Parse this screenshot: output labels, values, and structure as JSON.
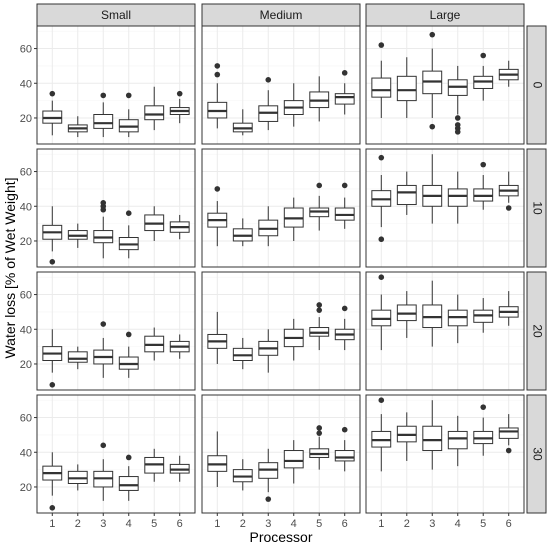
{
  "chart_data": {
    "type": "boxplot",
    "xlabel": "Processor",
    "ylabel": "Water loss [% of Wet Weight]",
    "x_ticks": [
      "1",
      "2",
      "3",
      "4",
      "5",
      "6"
    ],
    "y_ticks": [
      20,
      40,
      60
    ],
    "ylim": [
      5,
      73
    ],
    "grid": true,
    "columns": [
      "Small",
      "Medium",
      "Large"
    ],
    "rows": [
      "0",
      "10",
      "20",
      "30"
    ],
    "panels": [
      {
        "column": "Small",
        "row": "0",
        "boxes": [
          {
            "x": "1",
            "min": 10,
            "q1": 17,
            "median": 20,
            "q3": 24,
            "max": 30,
            "outliers": [
              34
            ]
          },
          {
            "x": "2",
            "min": 9,
            "q1": 12,
            "median": 14,
            "q3": 16,
            "max": 21,
            "outliers": []
          },
          {
            "x": "3",
            "min": 9,
            "q1": 14,
            "median": 17,
            "q3": 22,
            "max": 29,
            "outliers": [
              33
            ]
          },
          {
            "x": "4",
            "min": 9,
            "q1": 12,
            "median": 15,
            "q3": 19,
            "max": 25,
            "outliers": [
              33
            ]
          },
          {
            "x": "5",
            "min": 13,
            "q1": 19,
            "median": 22,
            "q3": 27,
            "max": 38,
            "outliers": []
          },
          {
            "x": "6",
            "min": 17,
            "q1": 22,
            "median": 24,
            "q3": 26,
            "max": 31,
            "outliers": [
              34
            ]
          }
        ]
      },
      {
        "column": "Medium",
        "row": "0",
        "boxes": [
          {
            "x": "1",
            "min": 14,
            "q1": 20,
            "median": 24,
            "q3": 29,
            "max": 40,
            "outliers": [
              45,
              50
            ]
          },
          {
            "x": "2",
            "min": 10,
            "q1": 12,
            "median": 14,
            "q3": 17,
            "max": 25,
            "outliers": []
          },
          {
            "x": "3",
            "min": 13,
            "q1": 18,
            "median": 23,
            "q3": 27,
            "max": 36,
            "outliers": [
              42
            ]
          },
          {
            "x": "4",
            "min": 15,
            "q1": 22,
            "median": 26,
            "q3": 30,
            "max": 40,
            "outliers": []
          },
          {
            "x": "5",
            "min": 18,
            "q1": 26,
            "median": 30,
            "q3": 35,
            "max": 44,
            "outliers": []
          },
          {
            "x": "6",
            "min": 22,
            "q1": 28,
            "median": 32,
            "q3": 34,
            "max": 40,
            "outliers": [
              46
            ]
          }
        ]
      },
      {
        "column": "Large",
        "row": "0",
        "boxes": [
          {
            "x": "1",
            "min": 20,
            "q1": 32,
            "median": 36,
            "q3": 43,
            "max": 53,
            "outliers": [
              62
            ]
          },
          {
            "x": "2",
            "min": 20,
            "q1": 30,
            "median": 36,
            "q3": 44,
            "max": 55,
            "outliers": []
          },
          {
            "x": "3",
            "min": 20,
            "q1": 34,
            "median": 41,
            "q3": 47,
            "max": 60,
            "outliers": [
              15,
              68
            ]
          },
          {
            "x": "4",
            "min": 22,
            "q1": 33,
            "median": 38,
            "q3": 42,
            "max": 50,
            "outliers": [
              12,
              14,
              16,
              20
            ]
          },
          {
            "x": "5",
            "min": 30,
            "q1": 37,
            "median": 41,
            "q3": 44,
            "max": 50,
            "outliers": [
              56
            ]
          },
          {
            "x": "6",
            "min": 38,
            "q1": 42,
            "median": 45,
            "q3": 48,
            "max": 53,
            "outliers": []
          }
        ]
      },
      {
        "column": "Small",
        "row": "10",
        "boxes": [
          {
            "x": "1",
            "min": 14,
            "q1": 21,
            "median": 25,
            "q3": 29,
            "max": 40,
            "outliers": [
              8
            ]
          },
          {
            "x": "2",
            "min": 16,
            "q1": 21,
            "median": 23,
            "q3": 26,
            "max": 30,
            "outliers": []
          },
          {
            "x": "3",
            "min": 10,
            "q1": 19,
            "median": 22,
            "q3": 26,
            "max": 34,
            "outliers": [
              38,
              40,
              42
            ]
          },
          {
            "x": "4",
            "min": 10,
            "q1": 15,
            "median": 18,
            "q3": 22,
            "max": 29,
            "outliers": [
              36
            ]
          },
          {
            "x": "5",
            "min": 20,
            "q1": 26,
            "median": 30,
            "q3": 35,
            "max": 40,
            "outliers": []
          },
          {
            "x": "6",
            "min": 21,
            "q1": 25,
            "median": 28,
            "q3": 31,
            "max": 35,
            "outliers": []
          }
        ]
      },
      {
        "column": "Medium",
        "row": "10",
        "boxes": [
          {
            "x": "1",
            "min": 17,
            "q1": 28,
            "median": 32,
            "q3": 36,
            "max": 43,
            "outliers": [
              50
            ]
          },
          {
            "x": "2",
            "min": 17,
            "q1": 20,
            "median": 23,
            "q3": 27,
            "max": 33,
            "outliers": []
          },
          {
            "x": "3",
            "min": 17,
            "q1": 23,
            "median": 27,
            "q3": 32,
            "max": 40,
            "outliers": []
          },
          {
            "x": "4",
            "min": 20,
            "q1": 28,
            "median": 33,
            "q3": 39,
            "max": 45,
            "outliers": []
          },
          {
            "x": "5",
            "min": 26,
            "q1": 34,
            "median": 37,
            "q3": 39,
            "max": 46,
            "outliers": [
              52
            ]
          },
          {
            "x": "6",
            "min": 27,
            "q1": 32,
            "median": 35,
            "q3": 39,
            "max": 45,
            "outliers": [
              52
            ]
          }
        ]
      },
      {
        "column": "Large",
        "row": "10",
        "boxes": [
          {
            "x": "1",
            "min": 28,
            "q1": 40,
            "median": 44,
            "q3": 49,
            "max": 58,
            "outliers": [
              21,
              68
            ]
          },
          {
            "x": "2",
            "min": 35,
            "q1": 41,
            "median": 48,
            "q3": 52,
            "max": 60,
            "outliers": []
          },
          {
            "x": "3",
            "min": 30,
            "q1": 40,
            "median": 46,
            "q3": 52,
            "max": 70,
            "outliers": []
          },
          {
            "x": "4",
            "min": 30,
            "q1": 40,
            "median": 46,
            "q3": 50,
            "max": 60,
            "outliers": []
          },
          {
            "x": "5",
            "min": 38,
            "q1": 43,
            "median": 46,
            "q3": 50,
            "max": 58,
            "outliers": [
              64
            ]
          },
          {
            "x": "6",
            "min": 42,
            "q1": 46,
            "median": 49,
            "q3": 52,
            "max": 60,
            "outliers": [
              39
            ]
          }
        ]
      },
      {
        "column": "Small",
        "row": "20",
        "boxes": [
          {
            "x": "1",
            "min": 15,
            "q1": 22,
            "median": 26,
            "q3": 30,
            "max": 40,
            "outliers": [
              8
            ]
          },
          {
            "x": "2",
            "min": 17,
            "q1": 21,
            "median": 23,
            "q3": 27,
            "max": 30,
            "outliers": []
          },
          {
            "x": "3",
            "min": 12,
            "q1": 20,
            "median": 24,
            "q3": 28,
            "max": 35,
            "outliers": [
              43
            ]
          },
          {
            "x": "4",
            "min": 12,
            "q1": 17,
            "median": 20,
            "q3": 24,
            "max": 30,
            "outliers": [
              37
            ]
          },
          {
            "x": "5",
            "min": 22,
            "q1": 27,
            "median": 31,
            "q3": 36,
            "max": 41,
            "outliers": []
          },
          {
            "x": "6",
            "min": 23,
            "q1": 27,
            "median": 30,
            "q3": 33,
            "max": 37,
            "outliers": []
          }
        ]
      },
      {
        "column": "Medium",
        "row": "20",
        "boxes": [
          {
            "x": "1",
            "min": 20,
            "q1": 29,
            "median": 33,
            "q3": 37,
            "max": 50,
            "outliers": []
          },
          {
            "x": "2",
            "min": 17,
            "q1": 22,
            "median": 25,
            "q3": 29,
            "max": 35,
            "outliers": []
          },
          {
            "x": "3",
            "min": 15,
            "q1": 25,
            "median": 29,
            "q3": 33,
            "max": 40,
            "outliers": []
          },
          {
            "x": "4",
            "min": 22,
            "q1": 30,
            "median": 35,
            "q3": 40,
            "max": 46,
            "outliers": []
          },
          {
            "x": "5",
            "min": 28,
            "q1": 36,
            "median": 38,
            "q3": 41,
            "max": 47,
            "outliers": [
              51,
              54
            ]
          },
          {
            "x": "6",
            "min": 28,
            "q1": 34,
            "median": 37,
            "q3": 40,
            "max": 46,
            "outliers": [
              52
            ]
          }
        ]
      },
      {
        "column": "Large",
        "row": "20",
        "boxes": [
          {
            "x": "1",
            "min": 28,
            "q1": 42,
            "median": 46,
            "q3": 51,
            "max": 60,
            "outliers": [
              70
            ]
          },
          {
            "x": "2",
            "min": 35,
            "q1": 45,
            "median": 49,
            "q3": 54,
            "max": 62,
            "outliers": []
          },
          {
            "x": "3",
            "min": 30,
            "q1": 41,
            "median": 47,
            "q3": 54,
            "max": 68,
            "outliers": []
          },
          {
            "x": "4",
            "min": 32,
            "q1": 42,
            "median": 47,
            "q3": 51,
            "max": 60,
            "outliers": []
          },
          {
            "x": "5",
            "min": 38,
            "q1": 44,
            "median": 48,
            "q3": 51,
            "max": 58,
            "outliers": []
          },
          {
            "x": "6",
            "min": 42,
            "q1": 47,
            "median": 50,
            "q3": 53,
            "max": 62,
            "outliers": []
          }
        ]
      },
      {
        "column": "Small",
        "row": "30",
        "boxes": [
          {
            "x": "1",
            "min": 15,
            "q1": 24,
            "median": 28,
            "q3": 32,
            "max": 40,
            "outliers": [
              8
            ]
          },
          {
            "x": "2",
            "min": 18,
            "q1": 22,
            "median": 25,
            "q3": 29,
            "max": 33,
            "outliers": []
          },
          {
            "x": "3",
            "min": 12,
            "q1": 20,
            "median": 25,
            "q3": 29,
            "max": 36,
            "outliers": [
              44
            ]
          },
          {
            "x": "4",
            "min": 12,
            "q1": 18,
            "median": 21,
            "q3": 26,
            "max": 32,
            "outliers": [
              37
            ]
          },
          {
            "x": "5",
            "min": 23,
            "q1": 28,
            "median": 33,
            "q3": 37,
            "max": 42,
            "outliers": []
          },
          {
            "x": "6",
            "min": 23,
            "q1": 28,
            "median": 30,
            "q3": 33,
            "max": 38,
            "outliers": []
          }
        ]
      },
      {
        "column": "Medium",
        "row": "30",
        "boxes": [
          {
            "x": "1",
            "min": 20,
            "q1": 29,
            "median": 33,
            "q3": 38,
            "max": 52,
            "outliers": []
          },
          {
            "x": "2",
            "min": 18,
            "q1": 23,
            "median": 26,
            "q3": 30,
            "max": 36,
            "outliers": []
          },
          {
            "x": "3",
            "min": 17,
            "q1": 25,
            "median": 30,
            "q3": 34,
            "max": 42,
            "outliers": [
              13
            ]
          },
          {
            "x": "4",
            "min": 22,
            "q1": 31,
            "median": 35,
            "q3": 41,
            "max": 47,
            "outliers": []
          },
          {
            "x": "5",
            "min": 30,
            "q1": 37,
            "median": 39,
            "q3": 42,
            "max": 49,
            "outliers": [
              51,
              54
            ]
          },
          {
            "x": "6",
            "min": 29,
            "q1": 35,
            "median": 37,
            "q3": 41,
            "max": 47,
            "outliers": [
              53
            ]
          }
        ]
      },
      {
        "column": "Large",
        "row": "30",
        "boxes": [
          {
            "x": "1",
            "min": 29,
            "q1": 43,
            "median": 47,
            "q3": 52,
            "max": 62,
            "outliers": [
              70
            ]
          },
          {
            "x": "2",
            "min": 35,
            "q1": 46,
            "median": 50,
            "q3": 55,
            "max": 63,
            "outliers": []
          },
          {
            "x": "3",
            "min": 30,
            "q1": 41,
            "median": 47,
            "q3": 55,
            "max": 70,
            "outliers": []
          },
          {
            "x": "4",
            "min": 32,
            "q1": 42,
            "median": 48,
            "q3": 52,
            "max": 61,
            "outliers": []
          },
          {
            "x": "5",
            "min": 38,
            "q1": 45,
            "median": 48,
            "q3": 52,
            "max": 60,
            "outliers": [
              66
            ]
          },
          {
            "x": "6",
            "min": 44,
            "q1": 48,
            "median": 52,
            "q3": 54,
            "max": 62,
            "outliers": [
              41
            ]
          }
        ]
      }
    ]
  }
}
